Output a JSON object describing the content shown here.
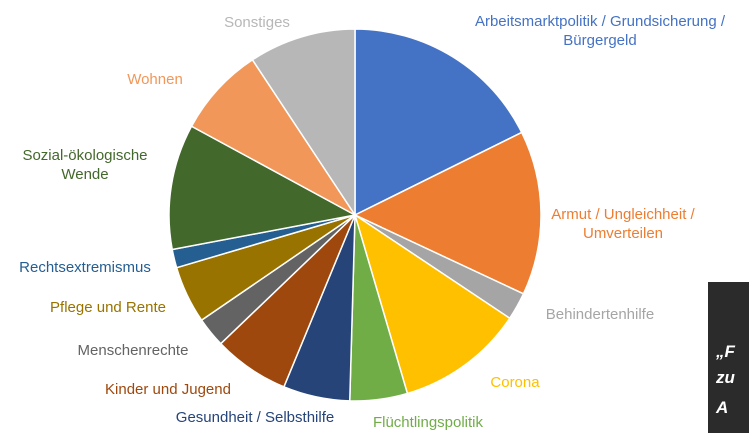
{
  "chart_data": {
    "type": "pie",
    "categories": [
      "Arbeitsmarktpolitik / Grundsicherung / Bürgergeld",
      "Armut / Ungleichheit / Umverteilen",
      "Behindertenhilfe",
      "Corona",
      "Flüchtlingspolitik",
      "Gesundheit / Selbsthilfe",
      "Kinder und Jugend",
      "Menschenrechte",
      "Pflege und Rente",
      "Rechtsextremismus",
      "Sozial-ökologische Wende",
      "Wohnen",
      "Sonstiges"
    ],
    "values": [
      17.7,
      14.3,
      2.4,
      11.1,
      5,
      5.8,
      6.6,
      2.6,
      5,
      1.6,
      10.9,
      7.8,
      9.3
    ],
    "colors": [
      "#4472c4",
      "#ed7d31",
      "#a5a5a5",
      "#ffc000",
      "#70ad47",
      "#264478",
      "#9e480e",
      "#636363",
      "#997300",
      "#255e91",
      "#43682b",
      "#f1975a",
      "#b7b7b7"
    ]
  },
  "photo": {
    "lines": [
      "„F",
      "zu",
      "A"
    ]
  }
}
